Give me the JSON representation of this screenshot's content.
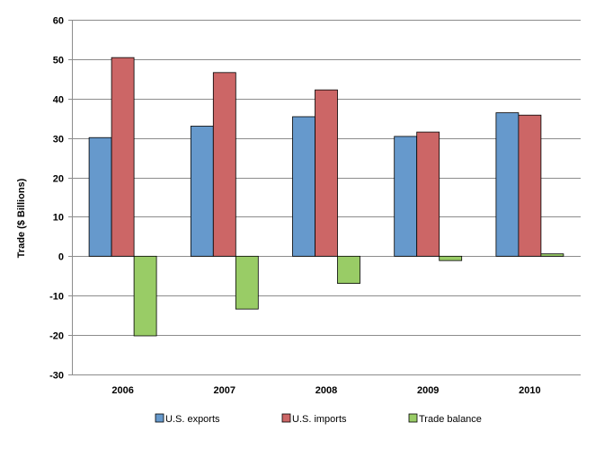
{
  "chart_data": {
    "type": "bar",
    "title": "",
    "xlabel": "",
    "ylabel": "Trade ($ Billions)",
    "categories": [
      "2006",
      "2007",
      "2008",
      "2009",
      "2010"
    ],
    "ylim": [
      -30,
      60
    ],
    "yticks": [
      -30,
      -20,
      -10,
      0,
      10,
      20,
      30,
      40,
      50,
      60
    ],
    "ytick_labels": [
      "-30",
      "-20",
      "-10",
      "0",
      "10",
      "20",
      "30",
      "40",
      "50",
      "60"
    ],
    "grid": true,
    "legend_position": "bottom",
    "series": [
      {
        "name": "U.S. exports",
        "color": "#6699CC",
        "values": [
          30.1,
          33.0,
          35.4,
          30.4,
          36.4
        ]
      },
      {
        "name": "U.S. imports",
        "color": "#CC6666",
        "values": [
          50.4,
          46.6,
          42.2,
          31.5,
          35.8
        ]
      },
      {
        "name": "Trade balance",
        "color": "#99CC66",
        "values": [
          -20.2,
          -13.4,
          -6.9,
          -1.1,
          0.6
        ]
      }
    ]
  }
}
